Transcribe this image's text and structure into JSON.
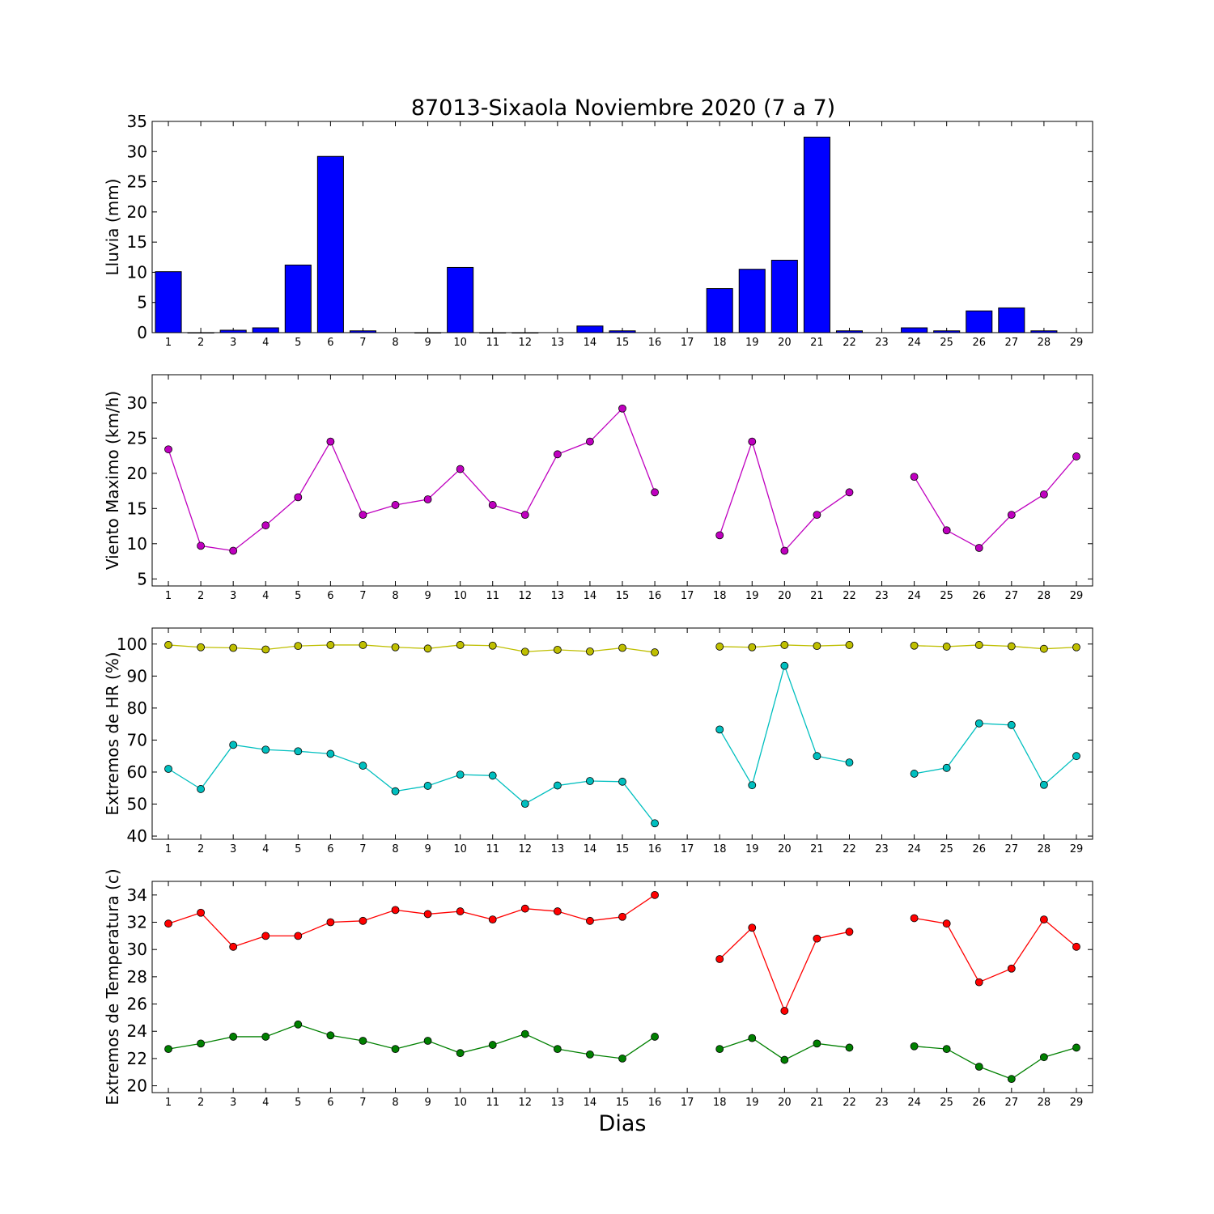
{
  "chart_data": {
    "title": "87013-Sixaola Noviembre 2020  (7 a 7)",
    "xlabel": "Dias",
    "days": [
      1,
      2,
      3,
      4,
      5,
      6,
      7,
      8,
      9,
      10,
      11,
      12,
      13,
      14,
      15,
      16,
      17,
      18,
      19,
      20,
      21,
      22,
      23,
      24,
      25,
      26,
      27,
      28,
      29
    ],
    "xlim": [
      0.5,
      29.5
    ],
    "panels": [
      {
        "id": "lluvia",
        "type": "bar",
        "ylabel": "Lluvia (mm)",
        "ylim": [
          0,
          35
        ],
        "yticks": [
          0,
          5,
          10,
          15,
          20,
          25,
          30,
          35
        ],
        "series": [
          {
            "color": "#0000ff",
            "values": [
              10.1,
              0.0,
              0.4,
              0.8,
              11.2,
              29.2,
              0.3,
              null,
              0.0,
              10.8,
              0.0,
              0.0,
              null,
              1.1,
              0.3,
              null,
              null,
              7.3,
              10.5,
              12.0,
              32.4,
              0.3,
              null,
              0.8,
              0.3,
              3.6,
              4.1,
              0.3,
              null
            ]
          }
        ]
      },
      {
        "id": "viento",
        "type": "line",
        "ylabel": "Viento Maximo (km/h)",
        "ylim": [
          4,
          34
        ],
        "yticks": [
          5,
          10,
          15,
          20,
          25,
          30
        ],
        "series": [
          {
            "color": "#bf00bf",
            "values": [
              23.4,
              9.7,
              9.0,
              12.6,
              16.6,
              24.5,
              14.1,
              15.5,
              16.3,
              20.6,
              15.5,
              14.1,
              22.7,
              24.5,
              29.2,
              17.3,
              null,
              11.2,
              24.5,
              9.0,
              14.1,
              17.3,
              null,
              19.5,
              11.9,
              9.4,
              14.1,
              17.0,
              22.4
            ]
          }
        ]
      },
      {
        "id": "hr",
        "type": "line",
        "ylabel": "Extremos de HR (%)",
        "ylim": [
          39,
          105
        ],
        "yticks": [
          40,
          50,
          60,
          70,
          80,
          90,
          100
        ],
        "series": [
          {
            "color": "#bfbf00",
            "values": [
              99.7,
              99.0,
              98.8,
              98.3,
              99.4,
              99.7,
              99.7,
              99.0,
              98.6,
              99.7,
              99.5,
              97.6,
              98.2,
              97.7,
              98.8,
              97.4,
              null,
              99.2,
              99.0,
              99.7,
              99.4,
              99.7,
              null,
              99.5,
              99.2,
              99.7,
              99.3,
              98.5,
              99.0
            ]
          },
          {
            "color": "#00bfbf",
            "values": [
              61.0,
              54.7,
              68.5,
              67.0,
              66.5,
              65.7,
              62.0,
              54.0,
              55.7,
              59.2,
              58.9,
              50.1,
              55.8,
              57.2,
              57.0,
              44.0,
              null,
              73.3,
              55.9,
              93.2,
              65.0,
              63.0,
              null,
              59.5,
              61.3,
              75.2,
              74.7,
              56.0,
              65.0
            ]
          }
        ]
      },
      {
        "id": "temp",
        "type": "line",
        "ylabel": "Extremos de Temperatura (c)",
        "ylim": [
          19.5,
          35
        ],
        "yticks": [
          20,
          22,
          24,
          26,
          28,
          30,
          32,
          34
        ],
        "series": [
          {
            "color": "#ff0000",
            "values": [
              31.9,
              32.7,
              30.2,
              31.0,
              31.0,
              32.0,
              32.1,
              32.9,
              32.6,
              32.8,
              32.2,
              33.0,
              32.8,
              32.1,
              32.4,
              34.0,
              null,
              29.3,
              31.6,
              25.5,
              30.8,
              31.3,
              null,
              32.3,
              31.9,
              27.6,
              28.6,
              32.2,
              30.2
            ]
          },
          {
            "color": "#008000",
            "values": [
              22.7,
              23.1,
              23.6,
              23.6,
              24.5,
              23.7,
              23.3,
              22.7,
              23.3,
              22.4,
              23.0,
              23.8,
              22.7,
              22.3,
              22.0,
              23.6,
              null,
              22.7,
              23.5,
              21.9,
              23.1,
              22.8,
              null,
              22.9,
              22.7,
              21.4,
              20.5,
              22.1,
              22.8
            ]
          }
        ]
      }
    ]
  }
}
